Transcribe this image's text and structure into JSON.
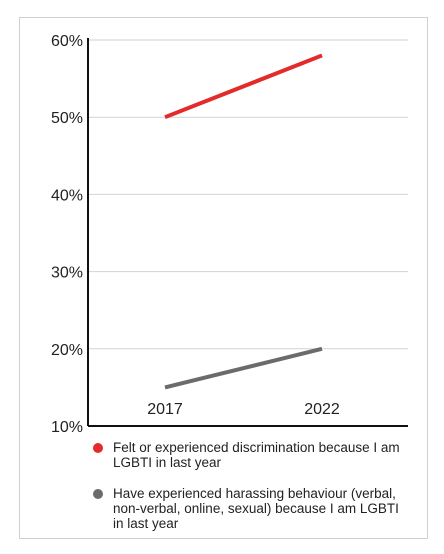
{
  "chart_data": {
    "type": "line",
    "x": [
      "2017",
      "2022"
    ],
    "ylim": [
      10,
      60
    ],
    "yticks": [
      "60%",
      "50%",
      "40%",
      "30%",
      "20%",
      "10%"
    ],
    "grid": true,
    "legend_position": "bottom",
    "series": [
      {
        "name": "Felt or experienced discrimination because I am LGBTI in last year",
        "values": [
          50,
          58
        ],
        "color": "#e32b2b"
      },
      {
        "name": "Have experienced harassing behaviour (verbal, non-verbal, online, sexual) because I am LGBTI in last year",
        "values": [
          15,
          20
        ],
        "color": "#6b6b6e"
      }
    ]
  }
}
